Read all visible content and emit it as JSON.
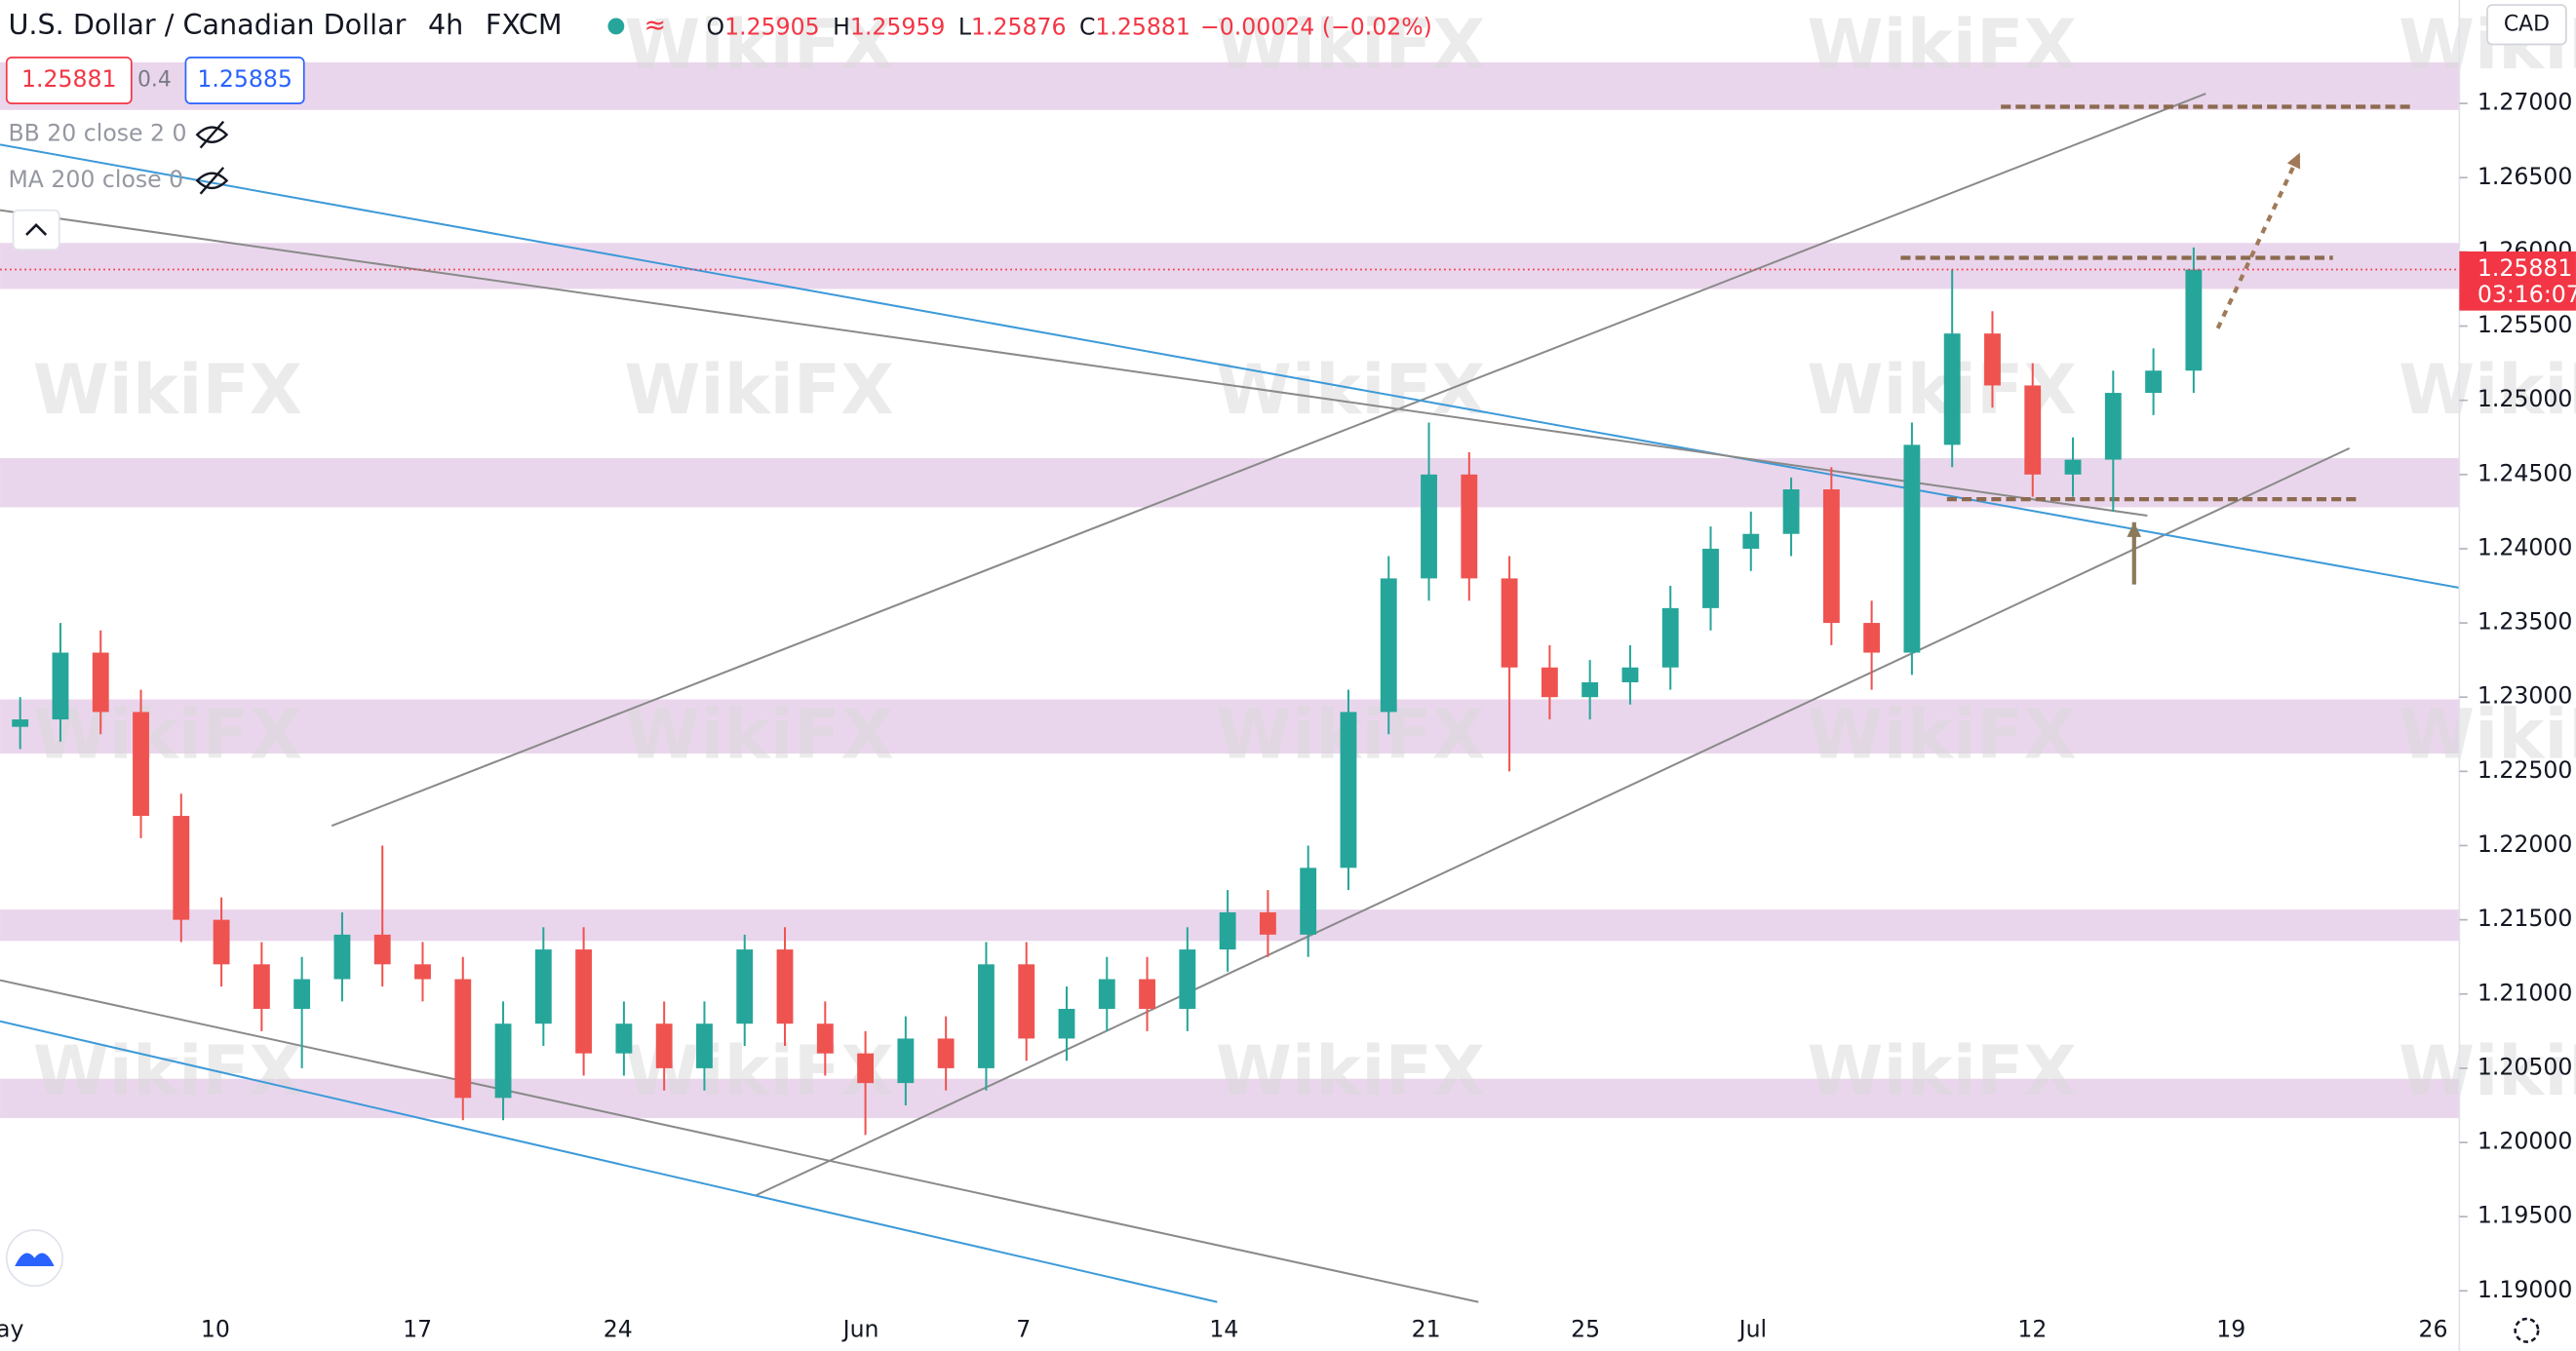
{
  "header": {
    "title": "U.S. Dollar / Canadian Dollar",
    "interval": "4h",
    "source": "FXCM",
    "ohlc": [
      {
        "label": "O",
        "value": "1.25905"
      },
      {
        "label": "H",
        "value": "1.25959"
      },
      {
        "label": "L",
        "value": "1.25876"
      },
      {
        "label": "C",
        "value": "1.25881"
      }
    ],
    "change": "−0.00024 (−0.02%)",
    "bid": "1.25881",
    "spread": "0.4",
    "ask": "1.25885",
    "indicators": [
      "BB 20 close 2 0",
      "MA 200 close 0"
    ],
    "currency": "CAD",
    "countdown": "03:16:07"
  },
  "watermark": "WikiFX",
  "chart_data": {
    "type": "candlestick",
    "up_color": "#26a69a",
    "down_color": "#ef5350",
    "x": [
      0.5,
      1.5,
      2.5,
      3.5,
      4.5,
      5.5,
      6.5,
      7.5,
      8.5,
      9.5,
      10.5,
      11.5,
      12.5,
      13.5,
      14.5,
      15.5,
      16.5,
      17.5,
      18.5,
      19.5,
      20.5,
      21.5,
      22.5,
      23.5,
      24.5,
      25.5,
      26.5,
      27.5,
      28.5,
      29.5,
      30.5,
      31.5,
      32.5,
      33.5,
      34.5,
      35.5,
      36.5,
      37.5,
      38.5,
      39.5,
      40.5,
      41.5,
      42.5,
      43.5,
      44.5,
      45.5,
      46.5,
      47.5,
      48.5,
      49.5,
      50.5,
      51.5,
      52.5,
      53.5,
      54.5
    ],
    "open": [
      1.228,
      1.2285,
      1.233,
      1.229,
      1.222,
      1.215,
      1.212,
      1.209,
      1.211,
      1.214,
      1.212,
      1.211,
      1.203,
      1.208,
      1.213,
      1.206,
      1.208,
      1.205,
      1.208,
      1.213,
      1.208,
      1.206,
      1.204,
      1.207,
      1.205,
      1.212,
      1.207,
      1.209,
      1.211,
      1.209,
      1.213,
      1.2155,
      1.214,
      1.2185,
      1.229,
      1.238,
      1.245,
      1.238,
      1.232,
      1.23,
      1.231,
      1.232,
      1.236,
      1.24,
      1.241,
      1.244,
      1.235,
      1.233,
      1.247,
      1.2545,
      1.251,
      1.245,
      1.246,
      1.2505,
      1.252
    ],
    "high": [
      1.23,
      1.235,
      1.2345,
      1.2305,
      1.2235,
      1.2165,
      1.2135,
      1.2125,
      1.2155,
      1.22,
      1.2135,
      1.2125,
      1.2095,
      1.2145,
      1.2145,
      1.2095,
      1.2095,
      1.2095,
      1.214,
      1.2145,
      1.2095,
      1.2075,
      1.2085,
      1.2085,
      1.2135,
      1.2135,
      1.2105,
      1.2125,
      1.2125,
      1.2145,
      1.217,
      1.217,
      1.22,
      1.2305,
      1.2395,
      1.2485,
      1.2465,
      1.2395,
      1.2335,
      1.2325,
      1.2335,
      1.2375,
      1.2415,
      1.2425,
      1.2448,
      1.2455,
      1.2365,
      1.2485,
      1.2588,
      1.256,
      1.2525,
      1.2475,
      1.252,
      1.2535,
      1.2603
    ],
    "low": [
      1.2265,
      1.227,
      1.2275,
      1.2205,
      1.2135,
      1.2105,
      1.2075,
      1.205,
      1.2095,
      1.2105,
      1.2095,
      1.2015,
      1.2015,
      1.2065,
      1.2045,
      1.2045,
      1.2035,
      1.2035,
      1.2065,
      1.2065,
      1.2045,
      1.2005,
      1.2025,
      1.2035,
      1.2035,
      1.2055,
      1.2055,
      1.2075,
      1.2075,
      1.2075,
      1.2115,
      1.2125,
      1.2125,
      1.217,
      1.2275,
      1.2365,
      1.2365,
      1.225,
      1.2285,
      1.2285,
      1.2295,
      1.2305,
      1.2345,
      1.2385,
      1.2395,
      1.2335,
      1.2305,
      1.2315,
      1.2455,
      1.2495,
      1.2435,
      1.2435,
      1.2425,
      1.249,
      1.2505
    ],
    "close": [
      1.2285,
      1.233,
      1.229,
      1.222,
      1.215,
      1.212,
      1.209,
      1.211,
      1.214,
      1.212,
      1.211,
      1.203,
      1.208,
      1.213,
      1.206,
      1.208,
      1.205,
      1.208,
      1.213,
      1.208,
      1.206,
      1.204,
      1.207,
      1.205,
      1.212,
      1.207,
      1.209,
      1.211,
      1.209,
      1.213,
      1.2155,
      1.214,
      1.2185,
      1.229,
      1.238,
      1.245,
      1.238,
      1.232,
      1.23,
      1.231,
      1.232,
      1.236,
      1.24,
      1.241,
      1.244,
      1.235,
      1.233,
      1.247,
      1.2545,
      1.251,
      1.245,
      1.246,
      1.2505,
      1.252,
      1.25881
    ],
    "xlim": [
      0,
      61.1
    ],
    "xticks": [
      {
        "value": 0,
        "label": "May"
      },
      {
        "value": 5.35,
        "label": "10"
      },
      {
        "value": 10.37,
        "label": "17"
      },
      {
        "value": 15.35,
        "label": "24"
      },
      {
        "value": 21.39,
        "label": "Jun"
      },
      {
        "value": 25.43,
        "label": "7"
      },
      {
        "value": 30.41,
        "label": "14"
      },
      {
        "value": 35.43,
        "label": "21"
      },
      {
        "value": 39.39,
        "label": "25"
      },
      {
        "value": 43.55,
        "label": "Jul"
      },
      {
        "value": 50.49,
        "label": "12"
      },
      {
        "value": 55.43,
        "label": "19"
      },
      {
        "value": 60.45,
        "label": "26"
      }
    ],
    "ylim": [
      1.18867,
      1.27697
    ],
    "yticks": [
      {
        "value": 1.19,
        "label": "1.19000"
      },
      {
        "value": 1.195,
        "label": "1.19500"
      },
      {
        "value": 1.2,
        "label": "1.20000"
      },
      {
        "value": 1.205,
        "label": "1.20500"
      },
      {
        "value": 1.21,
        "label": "1.21000"
      },
      {
        "value": 1.215,
        "label": "1.21500"
      },
      {
        "value": 1.22,
        "label": "1.22000"
      },
      {
        "value": 1.225,
        "label": "1.22500"
      },
      {
        "value": 1.23,
        "label": "1.23000"
      },
      {
        "value": 1.235,
        "label": "1.23500"
      },
      {
        "value": 1.24,
        "label": "1.24000"
      },
      {
        "value": 1.245,
        "label": "1.24500"
      },
      {
        "value": 1.25,
        "label": "1.25000"
      },
      {
        "value": 1.255,
        "label": "1.25500"
      },
      {
        "value": 1.26,
        "label": "1.26000"
      },
      {
        "value": 1.265,
        "label": "1.26500"
      },
      {
        "value": 1.27,
        "label": "1.27000"
      }
    ],
    "zone_color": "#e6cfe9",
    "zones": [
      [
        1.26956,
        1.27277
      ],
      [
        1.2575,
        1.2606
      ],
      [
        1.24279,
        1.24611
      ],
      [
        1.2262,
        1.22985
      ],
      [
        1.21358,
        1.21569
      ],
      [
        1.20164,
        1.20429
      ]
    ],
    "trendlines": [
      {
        "color": "#8a8a8a",
        "style": "solid",
        "points": [
          [
            8.24,
            1.22133
          ],
          [
            54.8,
            1.27066
          ]
        ]
      },
      {
        "color": "#8a8a8a",
        "style": "solid",
        "points": [
          [
            18.78,
            1.19644
          ],
          [
            58.37,
            1.24677
          ]
        ]
      },
      {
        "color": "#3d9ad8",
        "style": "solid",
        "points": [
          [
            0,
            1.26723
          ],
          [
            61.1,
            1.23737
          ]
        ]
      },
      {
        "color": "#8a8a8a",
        "style": "solid",
        "points": [
          [
            0,
            1.26281
          ],
          [
            53.35,
            1.24223
          ]
        ]
      },
      {
        "color": "#8a8a8a",
        "style": "solid",
        "points": [
          [
            0,
            1.21093
          ],
          [
            36.73,
            1.18925
          ]
        ]
      },
      {
        "color": "#3d9ad8",
        "style": "solid",
        "points": [
          [
            0,
            1.20816
          ],
          [
            30.24,
            1.18925
          ]
        ]
      },
      {
        "color": "#8b6a4f",
        "style": "dashed",
        "points": [
          [
            49.71,
            1.26978
          ],
          [
            59.92,
            1.26978
          ]
        ]
      },
      {
        "color": "#8b6a4f",
        "style": "dashed",
        "points": [
          [
            47.22,
            1.2596
          ],
          [
            57.96,
            1.2596
          ]
        ]
      },
      {
        "color": "#8b6a4f",
        "style": "dashed",
        "points": [
          [
            48.37,
            1.24334
          ],
          [
            58.57,
            1.24334
          ]
        ]
      }
    ],
    "arrows": [
      {
        "color": "#a07a58",
        "style": "dotted",
        "points": [
          [
            55.1,
            1.25485
          ],
          [
            57.14,
            1.26668
          ]
        ]
      },
      {
        "color": "#8b7a5a",
        "style": "solid",
        "points": [
          [
            53.02,
            1.23759
          ],
          [
            53.02,
            1.24179
          ]
        ]
      }
    ],
    "last_price": 1.25881,
    "last_color": "#f23645"
  }
}
